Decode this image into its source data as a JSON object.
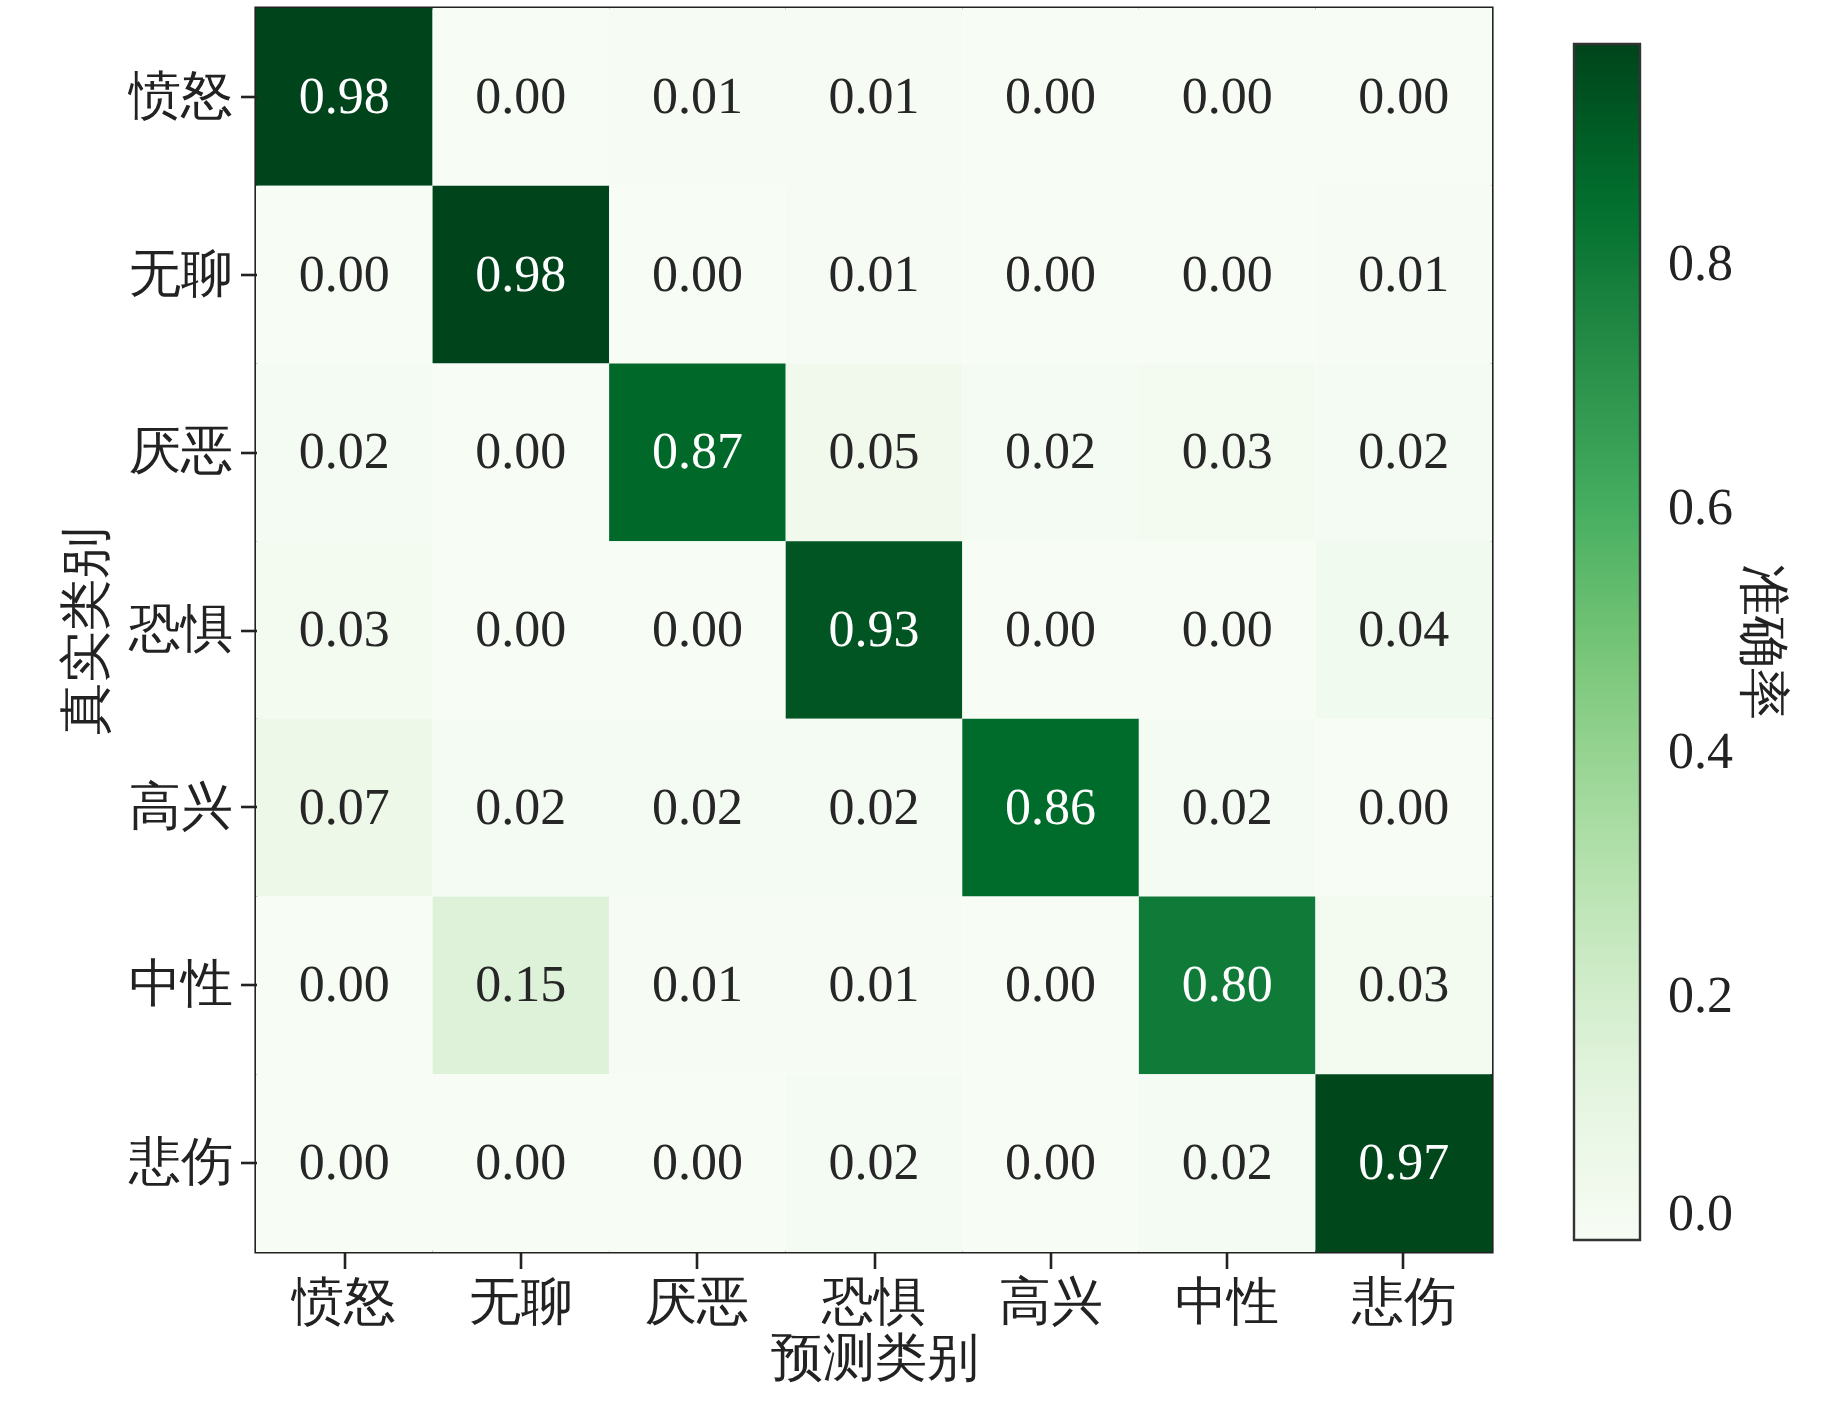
{
  "chart_data": {
    "type": "heatmap",
    "xlabel": "预测类别",
    "ylabel": "真实类别",
    "clabel": "准确率",
    "categories": [
      "愤怒",
      "无聊",
      "厌恶",
      "恐惧",
      "高兴",
      "中性",
      "悲伤"
    ],
    "y_categories": [
      "愤怒",
      "无聊",
      "厌恶",
      "恐惧",
      "高兴",
      "中性",
      "悲伤"
    ],
    "cells": [
      [
        0.98,
        0,
        0.01,
        0.01,
        0,
        0,
        0
      ],
      [
        0,
        0.98,
        0,
        0.01,
        0,
        0,
        0.01
      ],
      [
        0.02,
        0,
        0.87,
        0.05,
        0.02,
        0.03,
        0.02
      ],
      [
        0.03,
        0,
        0,
        0.93,
        0,
        0,
        0.04
      ],
      [
        0.07,
        0.02,
        0.02,
        0.02,
        0.86,
        0.02,
        0
      ],
      [
        0,
        0.15,
        0.01,
        0.01,
        0,
        0.8,
        0.03
      ],
      [
        0,
        0,
        0,
        0.02,
        0,
        0.02,
        0.97
      ]
    ],
    "cell_labels": [
      [
        "0.98",
        "0.00",
        "0.01",
        "0.01",
        "0.00",
        "0.00",
        "0.00"
      ],
      [
        "0.00",
        "0.98",
        "0.00",
        "0.01",
        "0.00",
        "0.00",
        "0.01"
      ],
      [
        "0.02",
        "0.00",
        "0.87",
        "0.05",
        "0.02",
        "0.03",
        "0.02"
      ],
      [
        "0.03",
        "0.00",
        "0.00",
        "0.93",
        "0.00",
        "0.00",
        "0.04"
      ],
      [
        "0.07",
        "0.02",
        "0.02",
        "0.02",
        "0.86",
        "0.02",
        "0.00"
      ],
      [
        "0.00",
        "0.15",
        "0.01",
        "0.01",
        "0.00",
        "0.80",
        "0.03"
      ],
      [
        "0.00",
        "0.00",
        "0.00",
        "0.02",
        "0.00",
        "0.02",
        "0.97"
      ]
    ],
    "clim": [
      0,
      0.98
    ],
    "cticks": [
      {
        "value": 0,
        "label": "0.0"
      },
      0.2,
      0.4,
      0.6,
      0.8
    ]
  }
}
